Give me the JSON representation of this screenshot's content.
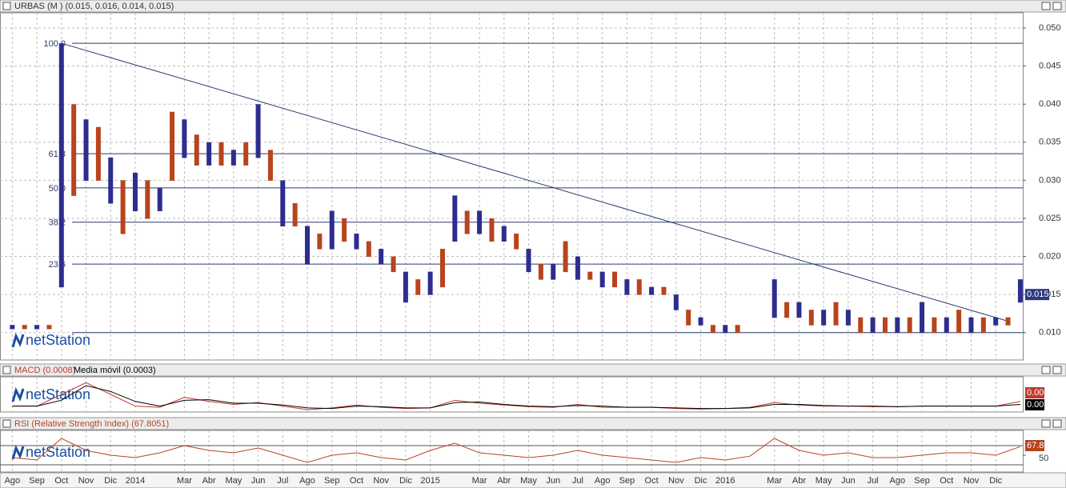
{
  "chart_data": [
    {
      "type": "ohlc",
      "title": "URBAS (M ) (0.015, 0.016, 0.014, 0.015)",
      "watermark": "netStation",
      "last_label": "0.015",
      "last_value": 0.015,
      "colors": [
        "#2d2d8f",
        "#b8441e"
      ],
      "xlim": [
        -0.5,
        41.1
      ],
      "xticks": [
        {
          "value": 0,
          "label": "Ago"
        },
        {
          "value": 1,
          "label": "Sep"
        },
        {
          "value": 2,
          "label": "Oct"
        },
        {
          "value": 3,
          "label": "Nov"
        },
        {
          "value": 4,
          "label": "Dic"
        },
        {
          "value": 5,
          "label": "2014"
        },
        {
          "value": 7,
          "label": "Mar"
        },
        {
          "value": 8,
          "label": "Abr"
        },
        {
          "value": 9,
          "label": "May"
        },
        {
          "value": 10,
          "label": "Jun"
        },
        {
          "value": 11,
          "label": "Jul"
        },
        {
          "value": 12,
          "label": "Ago"
        },
        {
          "value": 13,
          "label": "Sep"
        },
        {
          "value": 14,
          "label": "Oct"
        },
        {
          "value": 15,
          "label": "Nov"
        },
        {
          "value": 16,
          "label": "Dic"
        },
        {
          "value": 17,
          "label": "2015"
        },
        {
          "value": 19,
          "label": "Mar"
        },
        {
          "value": 20,
          "label": "Abr"
        },
        {
          "value": 21,
          "label": "May"
        },
        {
          "value": 22,
          "label": "Jun"
        },
        {
          "value": 23,
          "label": "Jul"
        },
        {
          "value": 24,
          "label": "Ago"
        },
        {
          "value": 25,
          "label": "Sep"
        },
        {
          "value": 26,
          "label": "Oct"
        },
        {
          "value": 27,
          "label": "Nov"
        },
        {
          "value": 28,
          "label": "Dic"
        },
        {
          "value": 29,
          "label": "2016"
        },
        {
          "value": 31,
          "label": "Mar"
        },
        {
          "value": 32,
          "label": "Abr"
        },
        {
          "value": 33,
          "label": "May"
        },
        {
          "value": 34,
          "label": "Jun"
        },
        {
          "value": 35,
          "label": "Jul"
        },
        {
          "value": 36,
          "label": "Ago"
        },
        {
          "value": 37,
          "label": "Sep"
        },
        {
          "value": 38,
          "label": "Oct"
        },
        {
          "value": 39,
          "label": "Nov"
        },
        {
          "value": 40,
          "label": "Dic"
        }
      ],
      "ylim": [
        0.0064,
        0.052
      ],
      "yticks": [
        {
          "value": 0.01,
          "label": "0.010"
        },
        {
          "value": 0.015,
          "label": "0.015"
        },
        {
          "value": 0.02,
          "label": "0.020"
        },
        {
          "value": 0.025,
          "label": "0.025"
        },
        {
          "value": 0.03,
          "label": "0.030"
        },
        {
          "value": 0.035,
          "label": "0.035"
        },
        {
          "value": 0.04,
          "label": "0.040"
        },
        {
          "value": 0.045,
          "label": "0.045"
        },
        {
          "value": 0.05,
          "label": "0.050"
        }
      ],
      "grid": true,
      "fib_levels": [
        {
          "label": "100.0",
          "value": 0.048
        },
        {
          "label": "61.8",
          "value": 0.0335
        },
        {
          "label": "50.0",
          "value": 0.029
        },
        {
          "label": "38.2",
          "value": 0.0245
        },
        {
          "label": "23.6",
          "value": 0.019
        },
        {
          "value": 0.01
        }
      ],
      "trendline": {
        "x": [
          2,
          40.5
        ],
        "values": [
          0.048,
          0.0115
        ]
      },
      "x": [
        0,
        0.5,
        1,
        1.5,
        2,
        2.5,
        3,
        3.5,
        4,
        4.5,
        5,
        5.5,
        6,
        6.5,
        7,
        7.5,
        8,
        8.5,
        9,
        9.5,
        10,
        10.5,
        11,
        11.5,
        12,
        12.5,
        13,
        13.5,
        14,
        14.5,
        15,
        15.5,
        16,
        16.5,
        17,
        17.5,
        18,
        18.5,
        19,
        19.5,
        20,
        20.5,
        21,
        21.5,
        22,
        22.5,
        23,
        23.5,
        24,
        24.5,
        25,
        25.5,
        26,
        26.5,
        27,
        27.5,
        28,
        28.5,
        29,
        29.5,
        31,
        31.5,
        32,
        32.5,
        33,
        33.5,
        34,
        34.5,
        35,
        35.5,
        36,
        36.5,
        37,
        37.5,
        38,
        38.5,
        39,
        39.5,
        40,
        40.5,
        41
      ],
      "high": [
        0.011,
        0.011,
        0.011,
        0.011,
        0.048,
        0.04,
        0.038,
        0.037,
        0.033,
        0.03,
        0.031,
        0.03,
        0.029,
        0.039,
        0.038,
        0.036,
        0.035,
        0.035,
        0.034,
        0.035,
        0.04,
        0.034,
        0.03,
        0.027,
        0.024,
        0.023,
        0.026,
        0.025,
        0.023,
        0.022,
        0.021,
        0.02,
        0.018,
        0.017,
        0.018,
        0.021,
        0.028,
        0.026,
        0.026,
        0.025,
        0.024,
        0.023,
        0.021,
        0.019,
        0.019,
        0.022,
        0.02,
        0.018,
        0.018,
        0.018,
        0.017,
        0.017,
        0.016,
        0.016,
        0.015,
        0.013,
        0.012,
        0.011,
        0.011,
        0.011,
        0.017,
        0.014,
        0.014,
        0.013,
        0.013,
        0.014,
        0.013,
        0.012,
        0.012,
        0.012,
        0.012,
        0.012,
        0.014,
        0.012,
        0.012,
        0.013,
        0.012,
        0.012,
        0.012,
        0.012,
        0.017
      ],
      "low": [
        0.0105,
        0.0105,
        0.0105,
        0.0105,
        0.016,
        0.028,
        0.03,
        0.03,
        0.027,
        0.023,
        0.026,
        0.025,
        0.026,
        0.03,
        0.033,
        0.032,
        0.032,
        0.032,
        0.032,
        0.032,
        0.033,
        0.03,
        0.024,
        0.024,
        0.019,
        0.021,
        0.021,
        0.022,
        0.021,
        0.02,
        0.019,
        0.018,
        0.014,
        0.015,
        0.015,
        0.016,
        0.022,
        0.023,
        0.023,
        0.022,
        0.022,
        0.021,
        0.018,
        0.017,
        0.017,
        0.018,
        0.017,
        0.017,
        0.016,
        0.016,
        0.015,
        0.015,
        0.015,
        0.015,
        0.013,
        0.011,
        0.011,
        0.01,
        0.01,
        0.01,
        0.012,
        0.012,
        0.012,
        0.011,
        0.011,
        0.011,
        0.011,
        0.01,
        0.01,
        0.01,
        0.01,
        0.01,
        0.01,
        0.01,
        0.01,
        0.01,
        0.01,
        0.01,
        0.011,
        0.011,
        0.014
      ]
    },
    {
      "type": "line",
      "watermark": "netStation",
      "ylim": [
        -0.001,
        0.005
      ],
      "x": [
        0,
        1,
        2,
        3,
        4,
        5,
        6,
        7,
        8,
        9,
        10,
        11,
        12,
        13,
        14,
        15,
        16,
        17,
        18,
        19,
        20,
        21,
        22,
        23,
        24,
        25,
        26,
        27,
        28,
        29,
        30,
        31,
        32,
        33,
        34,
        35,
        36,
        37,
        38,
        39,
        40,
        41
      ],
      "series": [
        {
          "name": "MACD (0.0008)",
          "color": "#c0392b",
          "last_label": "0.00",
          "values": [
            0,
            0,
            0.002,
            0.004,
            0.002,
            0,
            -0.0002,
            0.0015,
            0.0008,
            0.0003,
            0.0006,
            0,
            -0.0006,
            -0.0003,
            0.0002,
            -0.0002,
            -0.0004,
            -0.0003,
            0.001,
            0.0005,
            0.0002,
            -0.0001,
            -0.0002,
            0.0003,
            -0.0002,
            -0.0002,
            -0.0002,
            -0.0004,
            -0.0005,
            -0.0004,
            -0.0002,
            0.0006,
            0.0002,
            0,
            0,
            -0.0001,
            -0.0001,
            0,
            0,
            0,
            0,
            0.0008
          ]
        },
        {
          "name": "Media móvil (0.0003)",
          "color": "#000000",
          "last_label": "0.00",
          "values": [
            0,
            0,
            0.001,
            0.0035,
            0.0025,
            0.0008,
            0,
            0.001,
            0.0011,
            0.0005,
            0.0005,
            0.0002,
            -0.0003,
            -0.0004,
            0,
            -0.0001,
            -0.0003,
            -0.0003,
            0.0006,
            0.0007,
            0.0003,
            0,
            -0.0001,
            0.0001,
            0,
            -0.0002,
            -0.0002,
            -0.0003,
            -0.0004,
            -0.0004,
            -0.0003,
            0.0003,
            0.0003,
            0.0001,
            0,
            0,
            -0.0001,
            0,
            0,
            0,
            0,
            0.0003
          ]
        }
      ]
    },
    {
      "type": "line",
      "watermark": "netStation",
      "ylim": [
        15,
        101.7
      ],
      "yticks": [
        50
      ],
      "levels": [
        30,
        70
      ],
      "x": [
        0,
        1,
        2,
        3,
        4,
        5,
        6,
        7,
        8,
        9,
        10,
        11,
        12,
        13,
        14,
        15,
        16,
        17,
        18,
        19,
        20,
        21,
        22,
        23,
        24,
        25,
        26,
        27,
        28,
        29,
        30,
        31,
        32,
        33,
        34,
        35,
        36,
        37,
        38,
        39,
        40,
        41
      ],
      "series": [
        {
          "name": "RSI (Relative Strength Index) (67.8051)",
          "color": "#b8441e",
          "last_label": "67.81",
          "values": [
            45,
            40,
            85,
            60,
            50,
            45,
            55,
            70,
            60,
            55,
            65,
            50,
            35,
            50,
            55,
            45,
            40,
            60,
            75,
            55,
            50,
            45,
            50,
            60,
            50,
            45,
            40,
            35,
            45,
            40,
            48,
            85,
            60,
            50,
            55,
            45,
            45,
            50,
            55,
            55,
            50,
            68
          ]
        }
      ]
    }
  ]
}
